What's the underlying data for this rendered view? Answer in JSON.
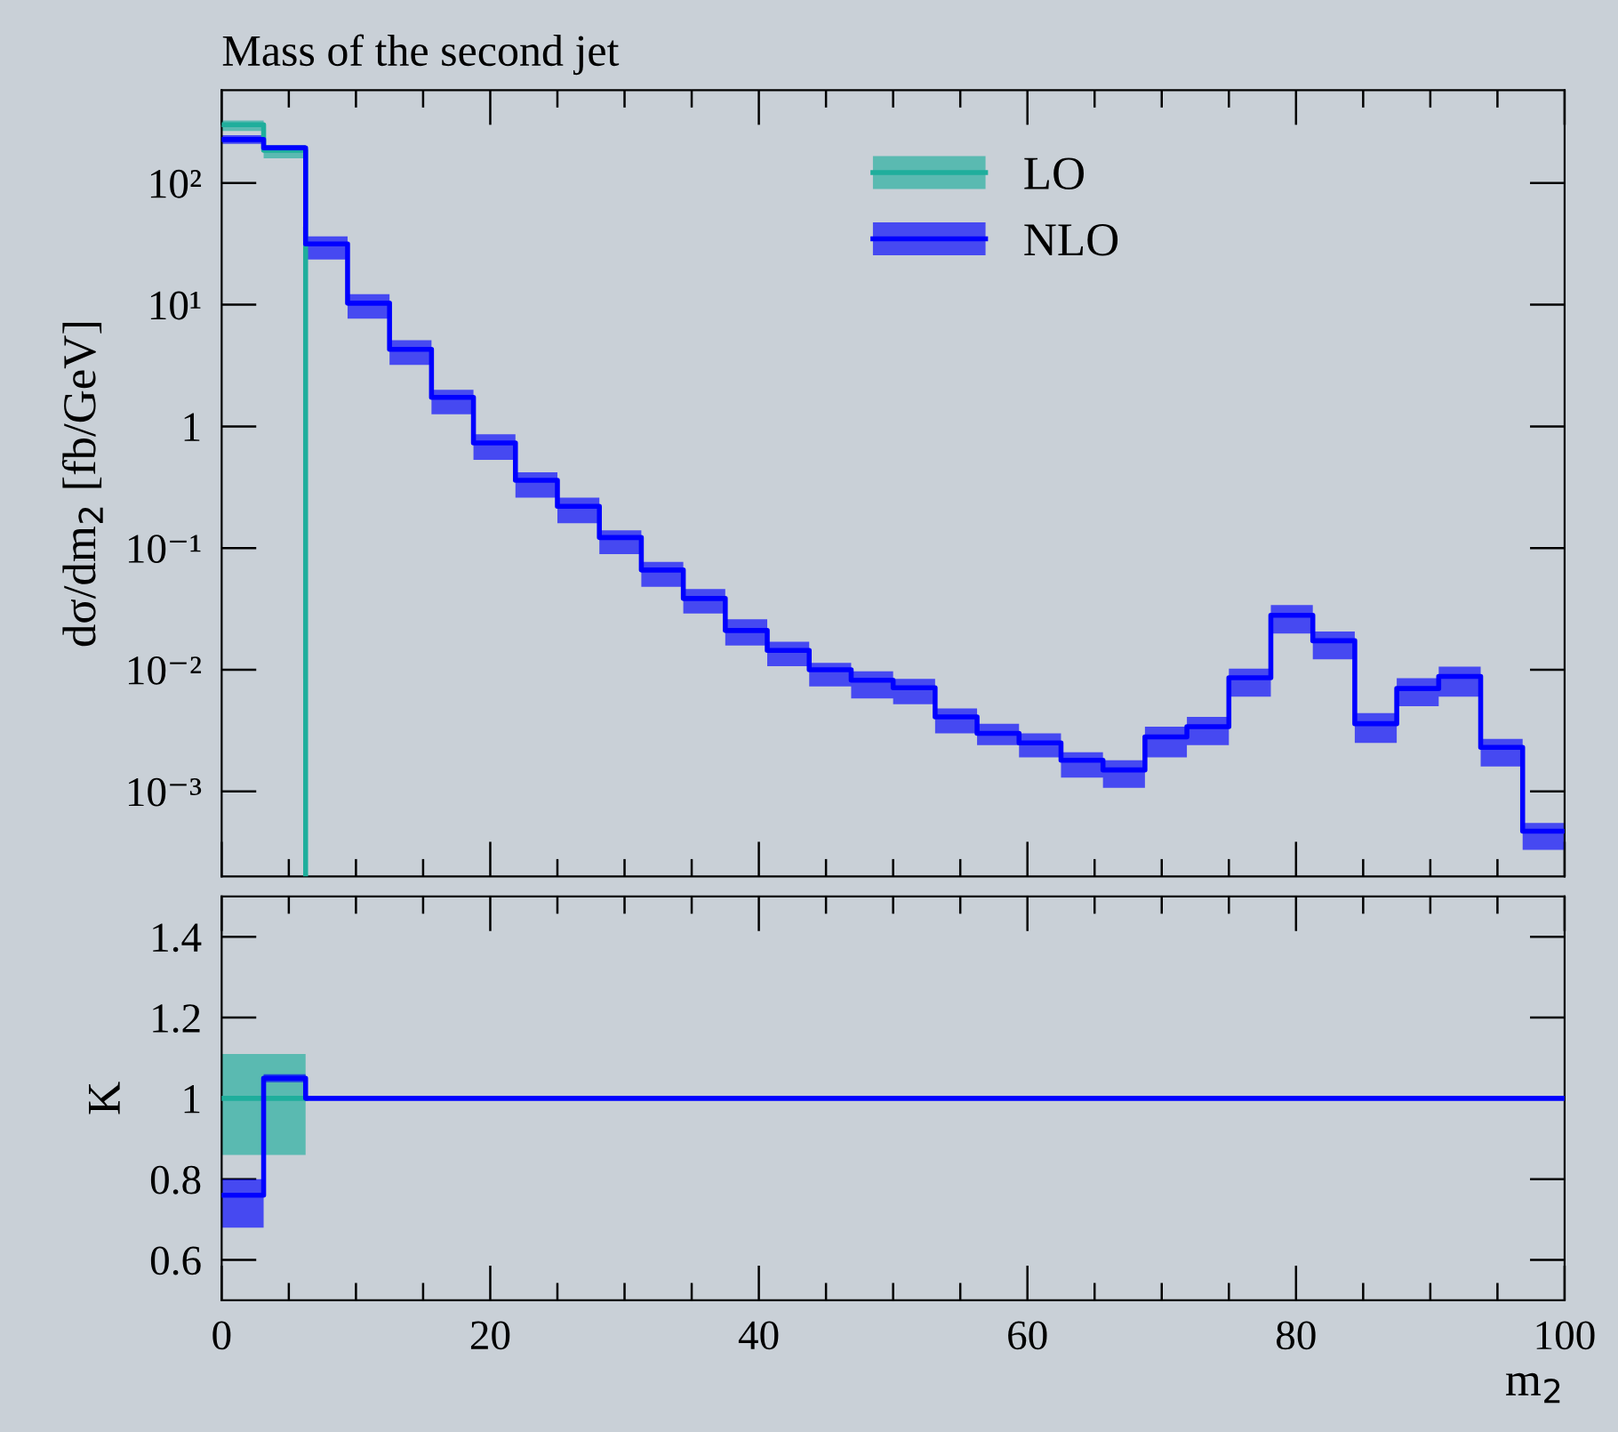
{
  "chart_data": [
    {
      "type": "step",
      "title": "Mass of the second jet",
      "ylabel": "dσ/dm$_{2}$ [fb/GeV]",
      "x": [
        0,
        3.125,
        6.25,
        9.375,
        12.5,
        15.625,
        18.75,
        21.875,
        25,
        28.125,
        31.25,
        34.375,
        37.5,
        40.625,
        43.75,
        46.875,
        50,
        53.125,
        56.25,
        59.375,
        62.5,
        65.625,
        68.75,
        71.875,
        75,
        78.125,
        81.25,
        84.375,
        87.5,
        90.625,
        93.75,
        96.875,
        100
      ],
      "series": [
        {
          "name": "LO",
          "color": "#1fae9c",
          "x": [
            0,
            3.125,
            6.25,
            6.25
          ],
          "values": [
            302,
            186,
            186,
            0.0002
          ],
          "lower": [
            268,
            160,
            160,
            null
          ],
          "upper": [
            327,
            205,
            205,
            null
          ]
        },
        {
          "name": "NLO",
          "color": "#0000ff",
          "values": [
            228,
            195,
            31.6,
            10.3,
            4.3,
            1.73,
            0.73,
            0.36,
            0.22,
            0.122,
            0.066,
            0.0385,
            0.021,
            0.0144,
            0.01,
            0.0082,
            0.0071,
            0.0041,
            0.003,
            0.0025,
            0.0018,
            0.0015,
            0.0028,
            0.0034,
            0.0086,
            0.028,
            0.0173,
            0.0036,
            0.007,
            0.0088,
            0.0023,
            0.00047,
            0.00047
          ],
          "lower": [
            210,
            190,
            23.5,
            7.7,
            3.2,
            1.26,
            0.53,
            0.26,
            0.16,
            0.089,
            0.048,
            0.029,
            0.0158,
            0.0107,
            0.0073,
            0.0058,
            0.0052,
            0.003,
            0.0024,
            0.0019,
            0.0013,
            0.00107,
            0.0019,
            0.0024,
            0.006,
            0.0198,
            0.0122,
            0.0025,
            0.005,
            0.006,
            0.0016,
            0.00033,
            0.00033
          ],
          "upper": [
            248,
            205,
            36.5,
            12.2,
            5.1,
            2.0,
            0.86,
            0.42,
            0.26,
            0.14,
            0.077,
            0.046,
            0.026,
            0.017,
            0.0114,
            0.0097,
            0.0084,
            0.0048,
            0.0036,
            0.003,
            0.0021,
            0.0018,
            0.0034,
            0.0041,
            0.0102,
            0.034,
            0.0206,
            0.0044,
            0.0085,
            0.0106,
            0.0027,
            0.00055,
            0.00055
          ]
        }
      ],
      "log": "y",
      "xlim": [
        0,
        100
      ],
      "xticks": [
        0,
        20,
        40,
        60,
        80,
        100
      ],
      "ylim": [
        0.0002,
        580
      ],
      "yticks": [
        {
          "value": 100,
          "label": "10²"
        },
        {
          "value": 10,
          "label": "10¹"
        },
        1,
        {
          "value": 0.1,
          "label": "10⁻¹"
        },
        {
          "value": 0.01,
          "label": "10⁻²"
        },
        {
          "value": 0.001,
          "label": "10⁻³"
        }
      ],
      "tick_labels": "y",
      "legend": "top right"
    },
    {
      "type": "step",
      "xlabel": "m$_{2}$",
      "ylabel": "K",
      "x": [
        0,
        3.125,
        6.25,
        9.375,
        12.5,
        15.625,
        18.75,
        21.875,
        25,
        28.125,
        31.25,
        34.375,
        37.5,
        40.625,
        43.75,
        46.875,
        50,
        53.125,
        56.25,
        59.375,
        62.5,
        65.625,
        68.75,
        71.875,
        75,
        78.125,
        81.25,
        84.375,
        87.5,
        90.625,
        93.75,
        96.875,
        100
      ],
      "series": [
        {
          "color": "#1fae9c",
          "x": [
            0,
            3.125,
            6.25
          ],
          "values": [
            1,
            1,
            1
          ],
          "lower": [
            0.86,
            0.86,
            0.86
          ],
          "upper": [
            1.11,
            1.11,
            1.11
          ]
        },
        {
          "color": "#0000ff",
          "values": [
            0.76,
            1.05,
            1,
            1,
            1,
            1,
            1,
            1,
            1,
            1,
            1,
            1,
            1,
            1,
            1,
            1,
            1,
            1,
            1,
            1,
            1,
            1,
            1,
            1,
            1,
            1,
            1,
            1,
            1,
            1,
            1,
            1,
            1
          ],
          "lower": [
            0.68,
            1.04,
            1.04,
            null,
            null,
            null,
            null,
            null,
            null,
            null,
            null,
            null,
            null,
            null,
            null,
            null,
            null,
            null,
            null,
            null,
            null,
            null,
            null,
            null,
            null,
            null,
            null,
            null,
            null,
            null,
            null,
            null,
            null
          ],
          "upper": [
            0.8,
            1.06,
            1.06,
            null,
            null,
            null,
            null,
            null,
            null,
            null,
            null,
            null,
            null,
            null,
            null,
            null,
            null,
            null,
            null,
            null,
            null,
            null,
            null,
            null,
            null,
            null,
            null,
            null,
            null,
            null,
            null,
            null,
            null
          ]
        }
      ],
      "xlim": [
        0,
        100
      ],
      "xticks": [
        0,
        20,
        40,
        60,
        80,
        100
      ],
      "ylim": [
        0.5,
        1.5
      ],
      "yticks": [
        0.6,
        0.8,
        1,
        1.2,
        1.4
      ]
    }
  ]
}
